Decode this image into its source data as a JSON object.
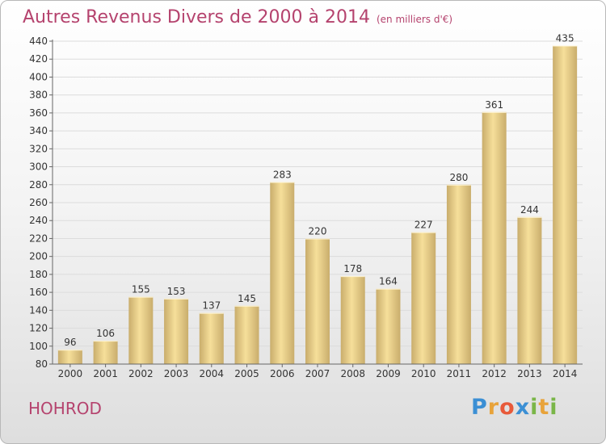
{
  "title": {
    "main": "Autres Revenus Divers de 2000 à 2014",
    "sub": "(en milliers d'€)"
  },
  "place": "HOHROD",
  "logo": {
    "letters": [
      "P",
      "r",
      "o",
      "x",
      "i",
      "t",
      "i"
    ],
    "colors": [
      "#3b8fd4",
      "#e8a33a",
      "#e85a3a",
      "#3b8fd4",
      "#7ab648",
      "#e8a33a",
      "#7ab648"
    ]
  },
  "colors": {
    "bar_light": "#f6df9a",
    "bar_dark": "#c9ad6c",
    "grid": "#dcdcdc"
  },
  "chart_data": {
    "type": "bar",
    "title": "Autres Revenus Divers de 2000 à 2014",
    "ylabel": "en milliers d'€",
    "xlabel": "",
    "categories": [
      "2000",
      "2001",
      "2002",
      "2003",
      "2004",
      "2005",
      "2006",
      "2007",
      "2008",
      "2009",
      "2010",
      "2011",
      "2012",
      "2013",
      "2014"
    ],
    "values": [
      96,
      106,
      155,
      153,
      137,
      145,
      283,
      220,
      178,
      164,
      227,
      280,
      361,
      244,
      435
    ],
    "ylim": [
      80,
      440
    ],
    "yticks": [
      "80",
      "100",
      "120",
      "140",
      "160",
      "180",
      "200",
      "220",
      "240",
      "260",
      "280",
      "300",
      "320",
      "340",
      "360",
      "380",
      "400",
      "420",
      "440"
    ],
    "grid": true
  }
}
